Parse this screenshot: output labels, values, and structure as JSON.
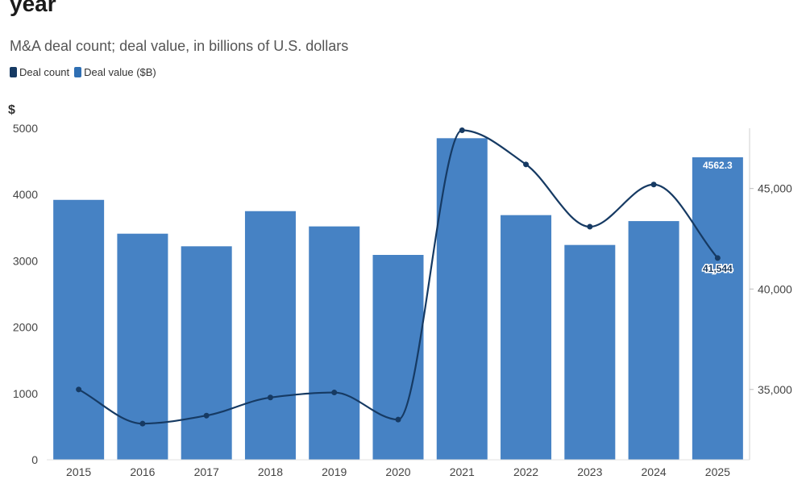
{
  "title": "year",
  "subtitle": "M&A deal count; deal value, in billions of U.S. dollars",
  "legend": {
    "count_label": "Deal count",
    "value_label": "Deal value ($B)"
  },
  "colors": {
    "bar": "#4682c4",
    "line": "#163a63",
    "legend_count": "#163a63",
    "legend_value": "#2f6fb3"
  },
  "chart_data": {
    "type": "bar",
    "categories": [
      "2015",
      "2016",
      "2017",
      "2018",
      "2019",
      "2020",
      "2021",
      "2022",
      "2023",
      "2024",
      "2025"
    ],
    "series": [
      {
        "name": "Deal value ($B)",
        "type": "bar",
        "axis": "left",
        "values": [
          3920,
          3410,
          3220,
          3750,
          3520,
          3090,
          4850,
          3690,
          3240,
          3600,
          4562.3
        ]
      },
      {
        "name": "Deal count",
        "type": "line",
        "axis": "right",
        "values": [
          35000,
          33300,
          33700,
          34600,
          34850,
          33500,
          47900,
          46200,
          43100,
          45200,
          41544
        ]
      }
    ],
    "left_axis": {
      "label": "$",
      "ticks": [
        0,
        1000,
        2000,
        3000,
        4000,
        5000
      ],
      "ylim": [
        0,
        5000
      ]
    },
    "right_axis": {
      "ticks": [
        "35,000",
        "40,000",
        "45,000"
      ],
      "tick_values": [
        35000,
        40000,
        45000
      ],
      "ylim": [
        31500,
        48000
      ]
    },
    "data_labels": {
      "bar_last": "4562.3",
      "line_last": "41,544"
    },
    "grid": false,
    "legend_position": "top-left"
  }
}
